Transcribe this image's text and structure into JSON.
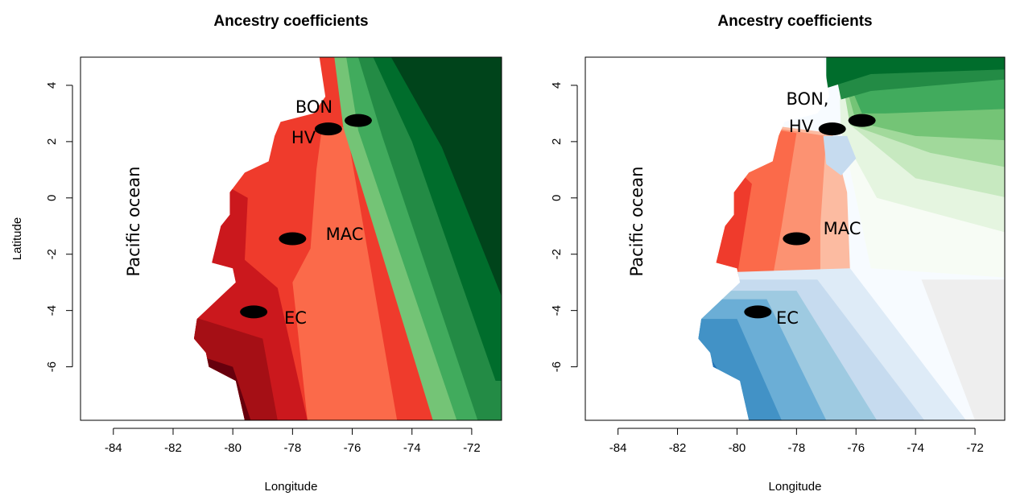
{
  "chart_data": [
    {
      "type": "map",
      "title": "Ancestry coefficients",
      "xlabel": "Longitude",
      "ylabel": "Latitude",
      "xlim": [
        -85.1,
        -71
      ],
      "ylim": [
        -7.9,
        5
      ],
      "xticks": [
        -84,
        -82,
        -80,
        -78,
        -76,
        -74,
        -72
      ],
      "yticks": [
        -6,
        -4,
        -2,
        0,
        2,
        4
      ],
      "sites": {
        "x": [
          -75.8,
          -76.8,
          -78,
          -79.3
        ],
        "y": [
          2.75,
          2.45,
          -1.45,
          -4.05
        ]
      },
      "annotations": [
        "BON",
        "HV",
        "MAC",
        "EC",
        "Pacific ocean"
      ]
    },
    {
      "type": "map",
      "title": "Ancestry coefficients",
      "xlabel": "Longitude",
      "xlim": [
        -85.1,
        -71
      ],
      "ylim": [
        -7.9,
        5
      ],
      "xticks": [
        -84,
        -82,
        -80,
        -78,
        -76,
        -74,
        -72
      ],
      "yticks": [
        -6,
        -4,
        -2,
        0,
        2,
        4
      ],
      "sites": {
        "x": [
          -75.8,
          -76.8,
          -78,
          -79.3
        ],
        "y": [
          2.75,
          2.45,
          -1.45,
          -4.05
        ]
      },
      "annotations": [
        "BON,",
        "HV",
        "MAC",
        "EC",
        "Pacific ocean"
      ]
    }
  ]
}
